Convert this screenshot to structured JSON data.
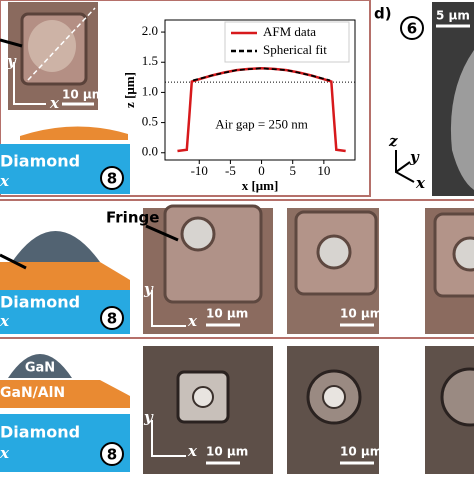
{
  "chart_data": {
    "type": "line",
    "series": [
      {
        "name": "AFM data",
        "color": "#d7191c",
        "dash": "solid",
        "x": [
          -13.5,
          -12,
          -11.6,
          -11.2,
          -10,
          -8,
          -6,
          -4,
          -2,
          0,
          2,
          4,
          6,
          8,
          10,
          11.2,
          11.6,
          12,
          13.5
        ],
        "values": [
          0.03,
          0.05,
          0.6,
          1.18,
          1.22,
          1.28,
          1.33,
          1.37,
          1.39,
          1.4,
          1.39,
          1.37,
          1.33,
          1.28,
          1.22,
          1.18,
          0.6,
          0.05,
          0.03
        ]
      },
      {
        "name": "Spherical fit",
        "color": "#000000",
        "dash": "dashed",
        "x": [
          -11,
          -8,
          -4,
          0,
          4,
          8,
          11
        ],
        "values": [
          1.2,
          1.28,
          1.37,
          1.4,
          1.37,
          1.28,
          1.2
        ]
      }
    ],
    "xlim": [
      -15.5,
      15
    ],
    "xticks": [
      -10,
      -5,
      0,
      5,
      10
    ],
    "ylim": [
      -0.12,
      2.2
    ],
    "yticks": [
      {
        "value": 0,
        "label": "0.0"
      },
      {
        "value": 0.5,
        "label": "0.5"
      },
      {
        "value": 1,
        "label": "1.0"
      },
      {
        "value": 1.5,
        "label": "1.5"
      },
      {
        "value": 2,
        "label": "2.0"
      }
    ],
    "xlabel": "x [μm]",
    "ylabel": "z [μm]",
    "reference_line": 1.17,
    "annotation": "Air gap = 250 nm",
    "legend": "upper right"
  },
  "panel_d": {
    "label": "d)",
    "step": "6",
    "scale_bar": "5 μm",
    "axis_z": "z",
    "axis_y": "y",
    "axis_x": "x"
  },
  "row1": {
    "axis_y": "y",
    "axis_x": "x",
    "scale_bar": "10 μm",
    "material": "Diamond",
    "material_axis": "x",
    "step": "8"
  },
  "row2": {
    "fringe": "Fringe",
    "material": "Diamond",
    "material_axis": "x",
    "step": "8",
    "axis_y": "y",
    "axis_x": "x",
    "scale_bars": [
      "10 μm",
      "10 μm"
    ]
  },
  "row3": {
    "top_layer": "GaN",
    "middle_layer": "GaN/AlN",
    "material": "Diamond",
    "material_axis": "x",
    "step": "8",
    "axis_y": "y",
    "axis_x": "x",
    "scale_bars": [
      "10 μm",
      "10 μm"
    ]
  }
}
